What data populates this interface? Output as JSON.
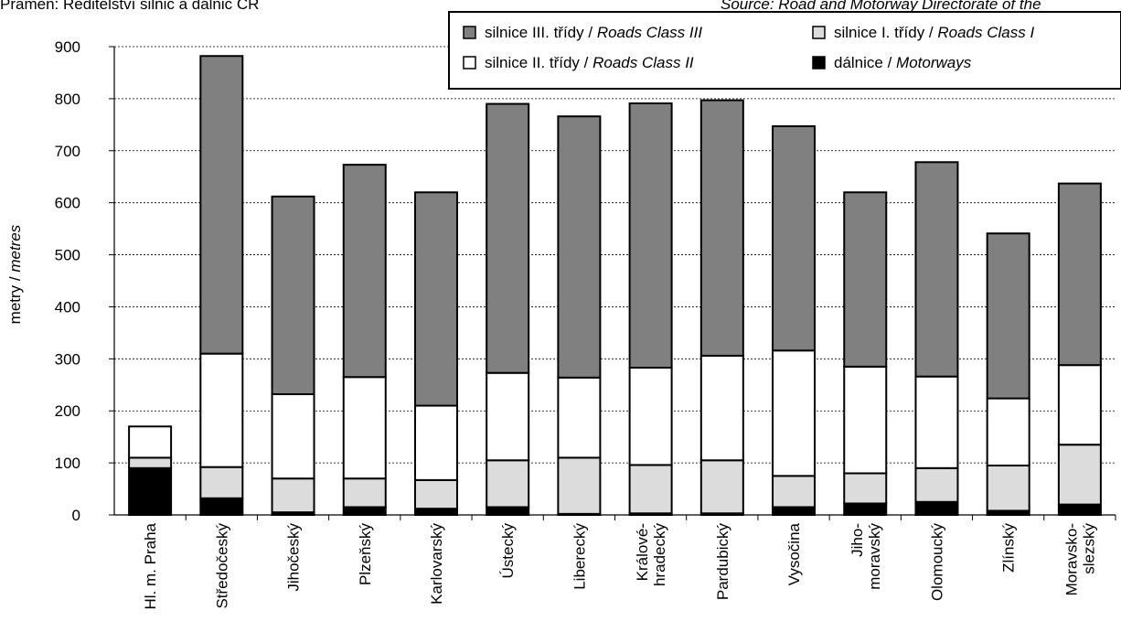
{
  "source_left": "Pramen: Ředitelství silnic a dálnic ČR",
  "source_right": "Source: Road and Motorway Directorate of the",
  "chart_data": {
    "type": "bar",
    "stacked": true,
    "ylabel": {
      "cz": "metry / ",
      "en": "metres"
    },
    "ylim": [
      0,
      900
    ],
    "yticks": [
      0,
      100,
      200,
      300,
      400,
      500,
      600,
      700,
      800,
      900
    ],
    "grid": true,
    "legend_position": "top-right",
    "categories": [
      [
        "Hl. m. Praha"
      ],
      [
        "Středočeský"
      ],
      [
        "Jihočeský"
      ],
      [
        "Plzeňský"
      ],
      [
        "Karlovarský"
      ],
      [
        "Ústecký"
      ],
      [
        "Liberecký"
      ],
      [
        "Královéhradecký"
      ],
      [
        "Pardubický"
      ],
      [
        "Vysočina"
      ],
      [
        "Jihomoravský"
      ],
      [
        "Olomoucký"
      ],
      [
        "Zlínský"
      ],
      [
        "Moravskoslezský"
      ]
    ],
    "category_lines": [
      [
        "Hl. m. Praha"
      ],
      [
        "Středočeský"
      ],
      [
        "Jihočeský"
      ],
      [
        "Plzeňský"
      ],
      [
        "Karlovarský"
      ],
      [
        "Ústecký"
      ],
      [
        "Liberecký"
      ],
      [
        "Králové-",
        "hradecký"
      ],
      [
        "Pardubický"
      ],
      [
        "Vysočina"
      ],
      [
        "Jiho-",
        "moravský"
      ],
      [
        "Olomoucký"
      ],
      [
        "Zlínský"
      ],
      [
        "Moravsko-",
        "slezský"
      ]
    ],
    "series": [
      {
        "key": "motorways",
        "legend_cz": "dálnice / ",
        "legend_en": "Motorways",
        "color": "#000000",
        "values": [
          90,
          32,
          5,
          15,
          12,
          15,
          2,
          3,
          3,
          15,
          22,
          25,
          8,
          20
        ]
      },
      {
        "key": "class1",
        "legend_cz": "silnice I. třídy / ",
        "legend_en": "Roads Class I",
        "color": "#dcdcdc",
        "values": [
          20,
          60,
          65,
          55,
          55,
          90,
          108,
          93,
          102,
          60,
          58,
          65,
          87,
          115
        ]
      },
      {
        "key": "class2",
        "legend_cz": "silnice II. třídy / ",
        "legend_en": "Roads Class II",
        "color": "#ffffff",
        "values": [
          60,
          218,
          162,
          195,
          143,
          168,
          154,
          187,
          201,
          241,
          205,
          176,
          129,
          153
        ]
      },
      {
        "key": "class3",
        "legend_cz": "silnice III. třídy / ",
        "legend_en": "Roads Class III",
        "color": "#808080",
        "values": [
          0,
          572,
          380,
          408,
          410,
          517,
          502,
          508,
          491,
          431,
          335,
          412,
          317,
          349
        ]
      }
    ],
    "legend_order": [
      "class3",
      "class1",
      "class2",
      "motorways"
    ]
  }
}
